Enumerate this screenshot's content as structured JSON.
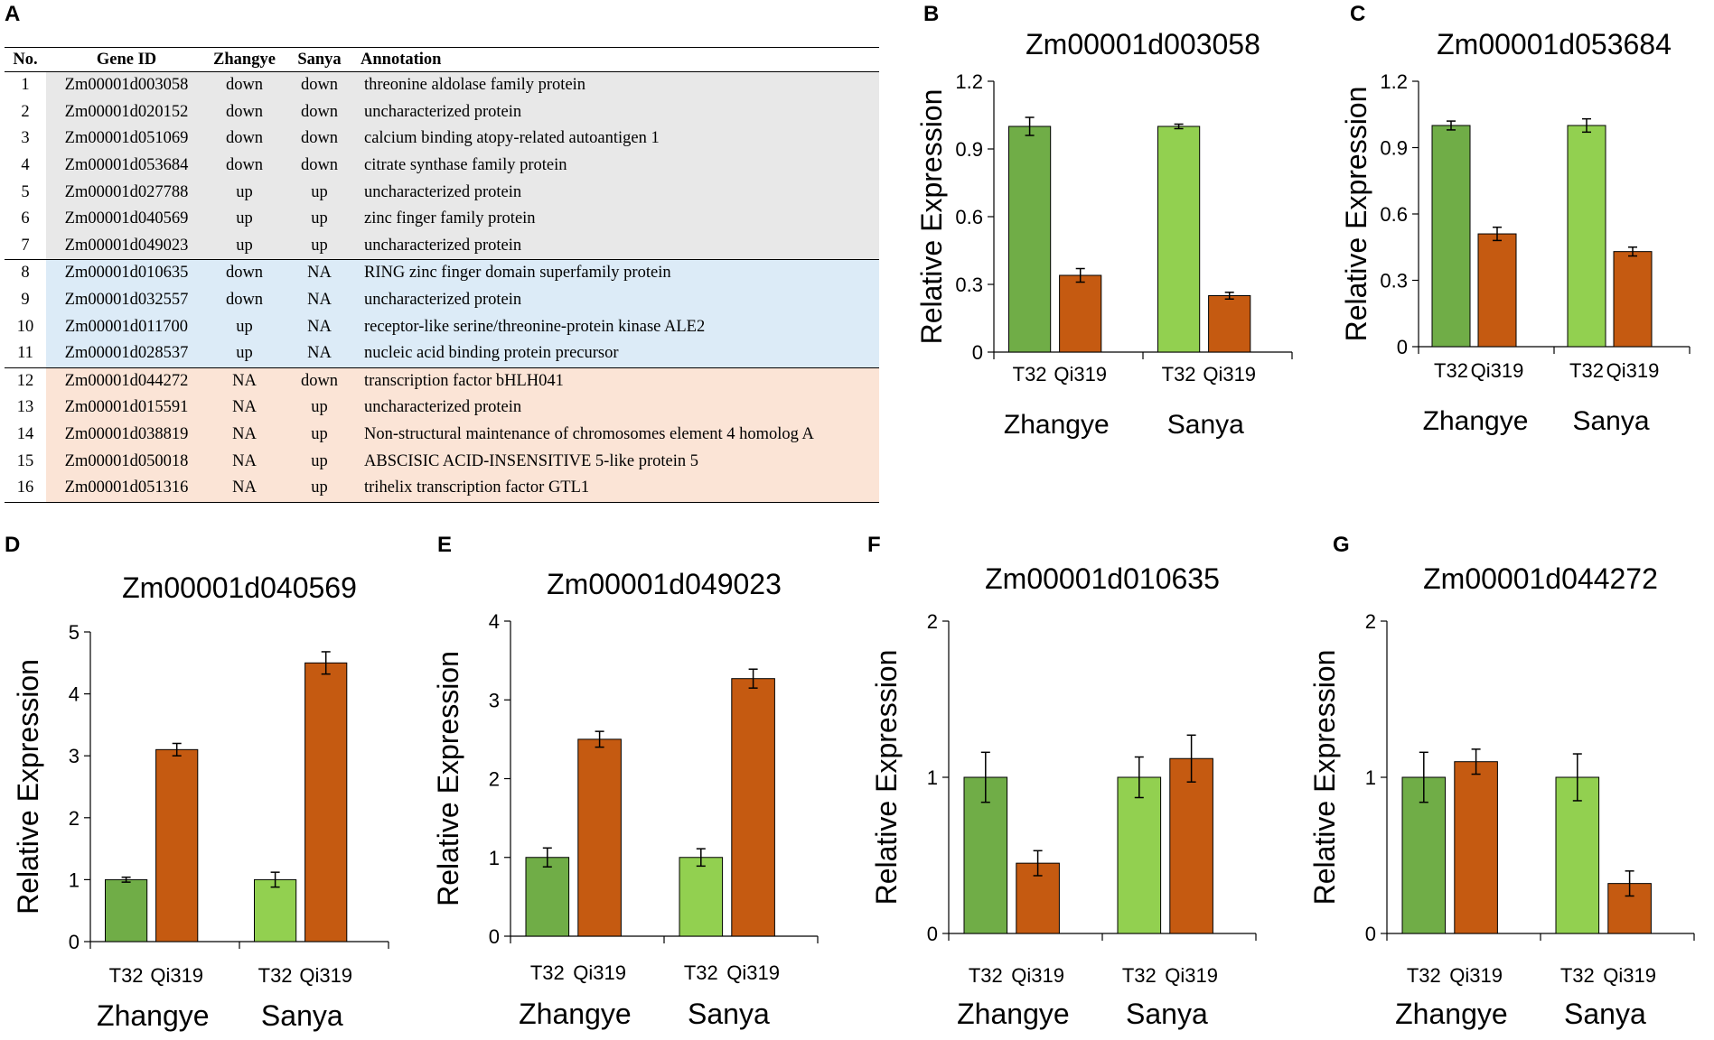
{
  "panel_labels": [
    "A",
    "B",
    "C",
    "D",
    "E",
    "F",
    "G"
  ],
  "table": {
    "headers": [
      "No.",
      "Gene ID",
      "Zhangye",
      "Sanya",
      "Annotation"
    ],
    "rows": [
      [
        "1",
        "Zm00001d003058",
        "down",
        "down",
        "threonine aldolase family protein"
      ],
      [
        "2",
        "Zm00001d020152",
        "down",
        "down",
        "uncharacterized protein"
      ],
      [
        "3",
        "Zm00001d051069",
        "down",
        "down",
        "calcium binding atopy-related autoantigen 1"
      ],
      [
        "4",
        "Zm00001d053684",
        "down",
        "down",
        "citrate synthase family protein"
      ],
      [
        "5",
        "Zm00001d027788",
        "up",
        "up",
        "uncharacterized protein"
      ],
      [
        "6",
        "Zm00001d040569",
        "up",
        "up",
        "zinc finger family protein"
      ],
      [
        "7",
        "Zm00001d049023",
        "up",
        "up",
        "uncharacterized protein"
      ],
      [
        "8",
        "Zm00001d010635",
        "down",
        "NA",
        "RING zinc finger domain superfamily protein"
      ],
      [
        "9",
        "Zm00001d032557",
        "down",
        "NA",
        "uncharacterized protein"
      ],
      [
        "10",
        "Zm00001d011700",
        "up",
        "NA",
        "receptor-like serine/threonine-protein kinase ALE2"
      ],
      [
        "11",
        "Zm00001d028537",
        "up",
        "NA",
        "nucleic acid binding protein precursor"
      ],
      [
        "12",
        "Zm00001d044272",
        "NA",
        "down",
        "transcription factor bHLH041"
      ],
      [
        "13",
        "Zm00001d015591",
        "NA",
        "up",
        "uncharacterized protein"
      ],
      [
        "14",
        "Zm00001d038819",
        "NA",
        "up",
        "Non-structural maintenance of chromosomes element 4 homolog A"
      ],
      [
        "15",
        "Zm00001d050018",
        "NA",
        "up",
        "ABSCISIC ACID-INSENSITIVE 5-like protein 5"
      ],
      [
        "16",
        "Zm00001d051316",
        "NA",
        "up",
        "trihelix transcription factor GTL1"
      ]
    ],
    "group_colors": [
      "#e8e8e8",
      "#dcebf7",
      "#fbe4d6"
    ]
  },
  "colors": {
    "zhangye_t32": "#70ad47",
    "sanya_t32": "#92d050",
    "qi319": "#c55a11"
  },
  "chart_data": [
    {
      "panel": "B",
      "type": "bar",
      "title": "Zm00001d003058",
      "ylabel": "Relative Expression",
      "ylim": [
        0,
        1.2
      ],
      "yticks": [
        "0",
        "0.3",
        "0.6",
        "0.9",
        "1.2"
      ],
      "tick_values": [
        0,
        0.3,
        0.6,
        0.9,
        1.2
      ],
      "groups": [
        "Zhangye",
        "Sanya"
      ],
      "categories": [
        "T32",
        "Qi319"
      ],
      "series": [
        {
          "name": "T32",
          "values": [
            1.0,
            1.0
          ],
          "errors": [
            0.04,
            0.01
          ]
        },
        {
          "name": "Qi319",
          "values": [
            0.34,
            0.25
          ],
          "errors": [
            0.03,
            0.015
          ]
        }
      ]
    },
    {
      "panel": "C",
      "type": "bar",
      "title": "Zm00001d053684",
      "ylabel": "Relative Expression",
      "ylim": [
        0,
        1.2
      ],
      "yticks": [
        "0",
        "0.3",
        "0.6",
        "0.9",
        "1.2"
      ],
      "tick_values": [
        0,
        0.3,
        0.6,
        0.9,
        1.2
      ],
      "groups": [
        "Zhangye",
        "Sanya"
      ],
      "categories": [
        "T32",
        "Qi319"
      ],
      "series": [
        {
          "name": "T32",
          "values": [
            1.0,
            1.0
          ],
          "errors": [
            0.02,
            0.03
          ]
        },
        {
          "name": "Qi319",
          "values": [
            0.51,
            0.43
          ],
          "errors": [
            0.03,
            0.02
          ]
        }
      ]
    },
    {
      "panel": "D",
      "type": "bar",
      "title": "Zm00001d040569",
      "ylabel": "Relative Expression",
      "ylim": [
        0,
        5
      ],
      "yticks": [
        "0",
        "1",
        "2",
        "3",
        "4",
        "5"
      ],
      "tick_values": [
        0,
        1,
        2,
        3,
        4,
        5
      ],
      "groups": [
        "Zhangye",
        "Sanya"
      ],
      "categories": [
        "T32",
        "Qi319"
      ],
      "series": [
        {
          "name": "T32",
          "values": [
            1.0,
            1.0
          ],
          "errors": [
            0.04,
            0.12
          ]
        },
        {
          "name": "Qi319",
          "values": [
            3.1,
            4.5
          ],
          "errors": [
            0.1,
            0.18
          ]
        }
      ]
    },
    {
      "panel": "E",
      "type": "bar",
      "title": "Zm00001d049023",
      "ylabel": "Relative Expression",
      "ylim": [
        0,
        4
      ],
      "yticks": [
        "0",
        "1",
        "2",
        "3",
        "4"
      ],
      "tick_values": [
        0,
        1,
        2,
        3,
        4
      ],
      "groups": [
        "Zhangye",
        "Sanya"
      ],
      "categories": [
        "T32",
        "Qi319"
      ],
      "series": [
        {
          "name": "T32",
          "values": [
            1.0,
            1.0
          ],
          "errors": [
            0.12,
            0.11
          ]
        },
        {
          "name": "Qi319",
          "values": [
            2.5,
            3.27
          ],
          "errors": [
            0.1,
            0.12
          ]
        }
      ]
    },
    {
      "panel": "F",
      "type": "bar",
      "title": "Zm00001d010635",
      "ylabel": "Relative Expression",
      "ylim": [
        0,
        2
      ],
      "yticks": [
        "0",
        "1",
        "2"
      ],
      "tick_values": [
        0,
        1,
        2
      ],
      "groups": [
        "Zhangye",
        "Sanya"
      ],
      "categories": [
        "T32",
        "Qi319"
      ],
      "series": [
        {
          "name": "T32",
          "values": [
            1.0,
            1.0
          ],
          "errors": [
            0.16,
            0.13
          ]
        },
        {
          "name": "Qi319",
          "values": [
            0.45,
            1.12
          ],
          "errors": [
            0.08,
            0.15
          ]
        }
      ]
    },
    {
      "panel": "G",
      "type": "bar",
      "title": "Zm00001d044272",
      "ylabel": "Relative Expression",
      "ylim": [
        0,
        2
      ],
      "yticks": [
        "0",
        "1",
        "2"
      ],
      "tick_values": [
        0,
        1,
        2
      ],
      "groups": [
        "Zhangye",
        "Sanya"
      ],
      "categories": [
        "T32",
        "Qi319"
      ],
      "series": [
        {
          "name": "T32",
          "values": [
            1.0,
            1.0
          ],
          "errors": [
            0.16,
            0.15
          ]
        },
        {
          "name": "Qi319",
          "values": [
            1.1,
            0.32
          ],
          "errors": [
            0.08,
            0.08
          ]
        }
      ]
    }
  ]
}
